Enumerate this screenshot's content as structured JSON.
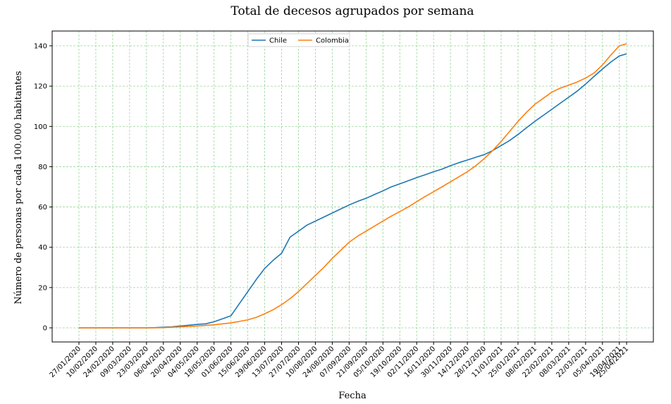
{
  "chart_data": {
    "type": "line",
    "title": "Total de decesos agrupados por semana",
    "xlabel": "Fecha",
    "ylabel": "Número de personas por cada 100.000 habitantes",
    "ylim": [
      -7,
      147
    ],
    "yticks": [
      0,
      20,
      40,
      60,
      80,
      100,
      120,
      140
    ],
    "grid": true,
    "grid_color": "#98d598",
    "legend_position": "top-center",
    "x_tick_labels": [
      "27/01/2020",
      "10/02/2020",
      "24/02/2020",
      "09/03/2020",
      "23/03/2020",
      "06/04/2020",
      "20/04/2020",
      "04/05/2020",
      "18/05/2020",
      "01/06/2020",
      "15/06/2020",
      "29/06/2020",
      "13/07/2020",
      "27/07/2020",
      "10/08/2020",
      "24/08/2020",
      "07/09/2020",
      "21/09/2020",
      "05/10/2020",
      "19/10/2020",
      "02/11/2020",
      "16/11/2020",
      "30/11/2020",
      "14/12/2020",
      "28/12/2020",
      "11/01/2021",
      "25/01/2021",
      "08/02/2021",
      "22/02/2021",
      "08/03/2021",
      "22/03/2021",
      "05/04/2021",
      "19/04/2021",
      "25/04/2021"
    ],
    "x": [
      "27/01/2020",
      "03/02/2020",
      "10/02/2020",
      "17/02/2020",
      "24/02/2020",
      "02/03/2020",
      "09/03/2020",
      "16/03/2020",
      "23/03/2020",
      "30/03/2020",
      "06/04/2020",
      "13/04/2020",
      "20/04/2020",
      "27/04/2020",
      "04/05/2020",
      "11/05/2020",
      "18/05/2020",
      "25/05/2020",
      "01/06/2020",
      "08/06/2020",
      "15/06/2020",
      "22/06/2020",
      "29/06/2020",
      "06/07/2020",
      "13/07/2020",
      "20/07/2020",
      "27/07/2020",
      "03/08/2020",
      "10/08/2020",
      "17/08/2020",
      "24/08/2020",
      "31/08/2020",
      "07/09/2020",
      "14/09/2020",
      "21/09/2020",
      "28/09/2020",
      "05/10/2020",
      "12/10/2020",
      "19/10/2020",
      "26/10/2020",
      "02/11/2020",
      "09/11/2020",
      "16/11/2020",
      "23/11/2020",
      "30/11/2020",
      "07/12/2020",
      "14/12/2020",
      "21/12/2020",
      "28/12/2020",
      "04/01/2021",
      "11/01/2021",
      "18/01/2021",
      "25/01/2021",
      "01/02/2021",
      "08/02/2021",
      "15/02/2021",
      "22/02/2021",
      "01/03/2021",
      "08/03/2021",
      "15/03/2021",
      "22/03/2021",
      "29/03/2021",
      "05/04/2021",
      "12/04/2021",
      "19/04/2021",
      "25/04/2021"
    ],
    "series": [
      {
        "name": "Chile",
        "color": "#1f77b4",
        "values": [
          0,
          0,
          0,
          0,
          0,
          0,
          0,
          0,
          0,
          0.1,
          0.3,
          0.5,
          0.9,
          1.3,
          1.7,
          2,
          3,
          4.5,
          6,
          12,
          18,
          24,
          29.5,
          33.5,
          37,
          45,
          48,
          51,
          53,
          55,
          57,
          59,
          61,
          62.8,
          64.3,
          66.2,
          68,
          70,
          71.5,
          73,
          74.6,
          76,
          77.5,
          78.8,
          80.5,
          82,
          83.3,
          84.7,
          86,
          88,
          90.5,
          93,
          96,
          99.3,
          102.5,
          105.5,
          108.5,
          111.5,
          114.5,
          117.5,
          121,
          124.8,
          128.5,
          132,
          135,
          136
        ]
      },
      {
        "name": "Colombia",
        "color": "#ff7f0e",
        "values": [
          0,
          0,
          0,
          0,
          0,
          0,
          0,
          0,
          0,
          0,
          0.1,
          0.3,
          0.5,
          0.7,
          0.9,
          1.2,
          1.5,
          2,
          2.5,
          3.2,
          4,
          5.2,
          7,
          9,
          11.5,
          14.5,
          18,
          22,
          26,
          30,
          34.5,
          38.5,
          42.5,
          45.5,
          48,
          50.5,
          53,
          55.5,
          57.7,
          60,
          62.6,
          65.2,
          67.6,
          70,
          72.5,
          75,
          77.5,
          80.5,
          84,
          88,
          92.5,
          97.5,
          102.5,
          107,
          111,
          114,
          117,
          119,
          120.5,
          122,
          124,
          126.5,
          130.5,
          135.5,
          140,
          141
        ]
      }
    ]
  }
}
